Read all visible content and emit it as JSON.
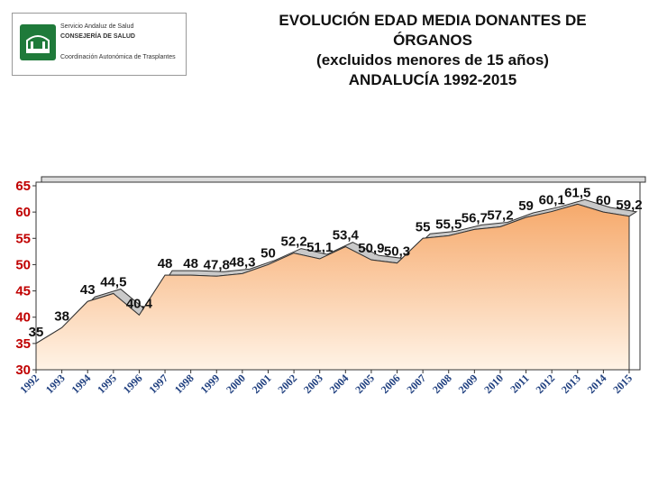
{
  "logo": {
    "line1": "Servicio Andaluz de Salud",
    "line2": "CONSEJERÍA DE SALUD",
    "line3": "Coordinación Autonómica de Trasplantes"
  },
  "title": {
    "line1": "EVOLUCIÓN EDAD MEDIA DONANTES DE",
    "line2": "ÓRGANOS",
    "line3": "(excluidos menores de 15 años)",
    "line4": "ANDALUCÍA 1992-2015"
  },
  "colors": {
    "ytick": "#c00000",
    "xtick": "#1f3f7f",
    "fill_top": "#f6a96b",
    "fill_bottom": "#fff3e6"
  },
  "chart_data": {
    "type": "area",
    "title": "EVOLUCIÓN EDAD MEDIA DONANTES DE ÓRGANOS (excluidos menores de 15 años) ANDALUCÍA 1992-2015",
    "categories": [
      "1992",
      "1993",
      "1994",
      "1995",
      "1996",
      "1997",
      "1998",
      "1999",
      "2000",
      "2001",
      "2002",
      "2003",
      "2004",
      "2005",
      "2006",
      "2007",
      "2008",
      "2009",
      "2010",
      "2011",
      "2012",
      "2013",
      "2014",
      "2015"
    ],
    "values": [
      35,
      38,
      43,
      44.5,
      40.4,
      48,
      48,
      47.8,
      48.3,
      50,
      52.2,
      51.1,
      53.4,
      50.9,
      50.3,
      55,
      55.5,
      56.7,
      57.2,
      59,
      60.1,
      61.5,
      60,
      59.2
    ],
    "labels": [
      "35",
      "38",
      "43",
      "44,5",
      "40,4",
      "48",
      "48",
      "47,8",
      "48,3",
      "50",
      "52,2",
      "51,1",
      "53,4",
      "50,9",
      "50,3",
      "55",
      "55,5",
      "56,7",
      "57,2",
      "59",
      "60,1",
      "61,5",
      "60",
      "59,2"
    ],
    "yticks": [
      "30",
      "35",
      "40",
      "45",
      "50",
      "55",
      "60",
      "65"
    ],
    "ylim": [
      30,
      65
    ],
    "xlabel": "",
    "ylabel": "",
    "grid": false
  }
}
